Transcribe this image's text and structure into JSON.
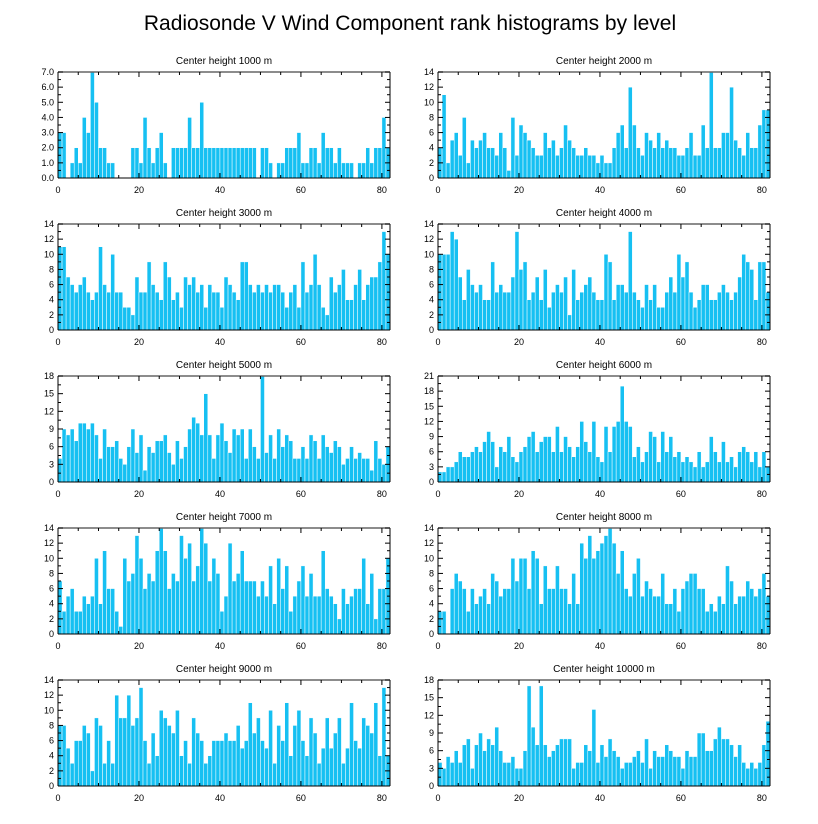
{
  "figure_title": "Radiosonde V Wind Component rank histograms by level",
  "colors": {
    "bar": "#16c0f2",
    "bar_edge": "#ffffff",
    "axis": "#000000",
    "frame_top": "#666666",
    "background": "#ffffff"
  },
  "chart_data": [
    {
      "type": "bar",
      "title": "Center height 1000 m",
      "xlim": [
        0,
        82
      ],
      "ylim": [
        0,
        7
      ],
      "xticks": [
        0,
        20,
        40,
        60,
        80
      ],
      "yticks": [
        0,
        1,
        2,
        3,
        4,
        5,
        6,
        7
      ],
      "ytick_labels": [
        "0.0",
        "1.0",
        "2.0",
        "3.0",
        "4.0",
        "5.0",
        "6.0",
        "7.0"
      ],
      "values": [
        3,
        3,
        0,
        1,
        2,
        1,
        4,
        3,
        7,
        5,
        2,
        2,
        1,
        1,
        0,
        0,
        0,
        0,
        2,
        2,
        1,
        4,
        2,
        1,
        2,
        3,
        1,
        0,
        2,
        2,
        2,
        2,
        4,
        2,
        2,
        5,
        2,
        2,
        2,
        2,
        2,
        2,
        2,
        2,
        2,
        2,
        2,
        2,
        2,
        0,
        2,
        2,
        1,
        0,
        1,
        1,
        2,
        2,
        2,
        3,
        1,
        1,
        2,
        2,
        1,
        3,
        2,
        2,
        1,
        2,
        1,
        1,
        1,
        0,
        1,
        1,
        2,
        1,
        2,
        2,
        4,
        2
      ]
    },
    {
      "type": "bar",
      "title": "Center height 2000 m",
      "xlim": [
        0,
        82
      ],
      "ylim": [
        0,
        14
      ],
      "xticks": [
        0,
        20,
        40,
        60,
        80
      ],
      "yticks": [
        0,
        2,
        4,
        6,
        8,
        10,
        12,
        14
      ],
      "values": [
        4,
        11,
        2,
        5,
        6,
        3,
        8,
        2,
        5,
        4,
        5,
        6,
        4,
        4,
        3,
        6,
        4,
        1,
        8,
        3,
        7,
        6,
        5,
        4,
        3,
        3,
        6,
        4,
        5,
        3,
        4,
        7,
        5,
        4,
        3,
        3,
        4,
        3,
        3,
        2,
        3,
        2,
        2,
        4,
        6,
        7,
        4,
        12,
        7,
        4,
        3,
        6,
        5,
        4,
        6,
        4,
        5,
        4,
        4,
        3,
        3,
        4,
        6,
        3,
        3,
        7,
        4,
        14,
        4,
        4,
        6,
        6,
        12,
        5,
        4,
        3,
        6,
        4,
        4,
        7,
        9,
        9
      ]
    },
    {
      "type": "bar",
      "title": "Center height 3000 m",
      "xlim": [
        0,
        82
      ],
      "ylim": [
        0,
        14
      ],
      "xticks": [
        0,
        20,
        40,
        60,
        80
      ],
      "yticks": [
        0,
        2,
        4,
        6,
        8,
        10,
        12,
        14
      ],
      "values": [
        11,
        11,
        7,
        6,
        5,
        6,
        7,
        5,
        4,
        5,
        11,
        6,
        5,
        10,
        5,
        5,
        3,
        3,
        2,
        7,
        5,
        5,
        9,
        6,
        5,
        4,
        9,
        7,
        4,
        5,
        3,
        7,
        6,
        7,
        5,
        6,
        3,
        6,
        5,
        5,
        3,
        7,
        6,
        5,
        4,
        9,
        9,
        6,
        5,
        6,
        5,
        6,
        5,
        6,
        6,
        5,
        3,
        5,
        6,
        3,
        9,
        5,
        6,
        10,
        6,
        3,
        2,
        7,
        5,
        6,
        8,
        4,
        4,
        6,
        8,
        4,
        6,
        7,
        7,
        9,
        13,
        10
      ]
    },
    {
      "type": "bar",
      "title": "Center height 4000 m",
      "xlim": [
        0,
        82
      ],
      "ylim": [
        0,
        14
      ],
      "xticks": [
        0,
        20,
        40,
        60,
        80
      ],
      "yticks": [
        0,
        2,
        4,
        6,
        8,
        10,
        12,
        14
      ],
      "values": [
        10,
        10,
        10,
        13,
        12,
        7,
        4,
        8,
        6,
        5,
        6,
        4,
        4,
        9,
        5,
        6,
        5,
        5,
        7,
        13,
        8,
        9,
        4,
        5,
        7,
        4,
        8,
        3,
        5,
        6,
        5,
        7,
        2,
        8,
        4,
        5,
        6,
        7,
        5,
        4,
        4,
        10,
        9,
        4,
        6,
        6,
        5,
        13,
        5,
        4,
        3,
        6,
        4,
        6,
        3,
        3,
        5,
        7,
        5,
        10,
        7,
        9,
        5,
        3,
        4,
        6,
        6,
        4,
        4,
        5,
        6,
        5,
        4,
        5,
        7,
        10,
        9,
        8,
        4,
        9,
        9,
        5
      ]
    },
    {
      "type": "bar",
      "title": "Center height 5000 m",
      "xlim": [
        0,
        82
      ],
      "ylim": [
        0,
        18
      ],
      "xticks": [
        0,
        20,
        40,
        60,
        80
      ],
      "yticks": [
        0,
        3,
        6,
        9,
        12,
        15,
        18
      ],
      "values": [
        4,
        9,
        8,
        9,
        7,
        10,
        10,
        9,
        10,
        8,
        4,
        9,
        6,
        6,
        7,
        4,
        3,
        6,
        9,
        5,
        8,
        2,
        6,
        5,
        7,
        7,
        8,
        5,
        3,
        7,
        4,
        6,
        9,
        11,
        10,
        8,
        15,
        8,
        4,
        8,
        10,
        7,
        5,
        9,
        8,
        9,
        4,
        9,
        6,
        4,
        18,
        5,
        8,
        4,
        9,
        6,
        8,
        7,
        4,
        4,
        6,
        4,
        8,
        7,
        4,
        8,
        6,
        5,
        7,
        6,
        3,
        4,
        6,
        4,
        5,
        4,
        4,
        2,
        7,
        4,
        3,
        6
      ]
    },
    {
      "type": "bar",
      "title": "Center height 6000 m",
      "xlim": [
        0,
        82
      ],
      "ylim": [
        0,
        21
      ],
      "xticks": [
        0,
        20,
        40,
        60,
        80
      ],
      "yticks": [
        0,
        3,
        6,
        9,
        12,
        15,
        18,
        21
      ],
      "values": [
        2,
        2,
        3,
        3,
        4,
        6,
        5,
        5,
        6,
        7,
        6,
        8,
        10,
        8,
        3,
        7,
        6,
        9,
        5,
        4,
        6,
        7,
        9,
        10,
        6,
        8,
        9,
        9,
        6,
        11,
        6,
        9,
        7,
        5,
        7,
        12,
        8,
        6,
        12,
        5,
        4,
        11,
        6,
        11,
        12,
        19,
        12,
        11,
        5,
        7,
        4,
        6,
        10,
        9,
        4,
        10,
        6,
        9,
        5,
        6,
        4,
        5,
        4,
        3,
        6,
        3,
        4,
        9,
        6,
        4,
        8,
        4,
        5,
        3,
        6,
        7,
        6,
        4,
        6,
        3,
        6,
        3
      ]
    },
    {
      "type": "bar",
      "title": "Center height 7000 m",
      "xlim": [
        0,
        82
      ],
      "ylim": [
        0,
        14
      ],
      "xticks": [
        0,
        20,
        40,
        60,
        80
      ],
      "yticks": [
        0,
        2,
        4,
        6,
        8,
        10,
        12,
        14
      ],
      "values": [
        7,
        3,
        5,
        6,
        3,
        3,
        5,
        4,
        5,
        10,
        4,
        11,
        6,
        6,
        3,
        1,
        10,
        7,
        8,
        13,
        10,
        6,
        8,
        7,
        11,
        14,
        11,
        6,
        8,
        7,
        13,
        10,
        12,
        7,
        9,
        14,
        12,
        7,
        10,
        8,
        3,
        5,
        12,
        7,
        8,
        11,
        7,
        7,
        7,
        5,
        7,
        5,
        9,
        4,
        10,
        6,
        9,
        3,
        5,
        7,
        9,
        5,
        8,
        5,
        5,
        11,
        6,
        5,
        4,
        2,
        6,
        4,
        5,
        6,
        6,
        10,
        4,
        8,
        2,
        6,
        6,
        10
      ]
    },
    {
      "type": "bar",
      "title": "Center height 8000 m",
      "xlim": [
        0,
        82
      ],
      "ylim": [
        0,
        14
      ],
      "xticks": [
        0,
        20,
        40,
        60,
        80
      ],
      "yticks": [
        0,
        2,
        4,
        6,
        8,
        10,
        12,
        14
      ],
      "values": [
        3,
        3,
        0,
        6,
        8,
        7,
        6,
        3,
        6,
        4,
        5,
        6,
        4,
        8,
        7,
        5,
        6,
        6,
        10,
        7,
        10,
        10,
        6,
        11,
        10,
        4,
        9,
        6,
        6,
        9,
        6,
        6,
        4,
        8,
        4,
        12,
        10,
        13,
        10,
        11,
        12,
        13,
        14,
        12,
        8,
        11,
        6,
        5,
        8,
        10,
        5,
        7,
        6,
        5,
        5,
        8,
        4,
        4,
        6,
        3,
        6,
        7,
        8,
        8,
        6,
        6,
        3,
        4,
        3,
        5,
        4,
        9,
        7,
        4,
        5,
        5,
        7,
        6,
        5,
        6,
        8,
        5
      ]
    },
    {
      "type": "bar",
      "title": "Center height 9000 m",
      "xlim": [
        0,
        82
      ],
      "ylim": [
        0,
        14
      ],
      "xticks": [
        0,
        20,
        40,
        60,
        80
      ],
      "yticks": [
        0,
        2,
        4,
        6,
        8,
        10,
        12,
        14
      ],
      "values": [
        8,
        8,
        5,
        3,
        6,
        6,
        8,
        7,
        2,
        9,
        8,
        3,
        6,
        3,
        12,
        9,
        9,
        12,
        8,
        9,
        13,
        6,
        3,
        7,
        4,
        10,
        9,
        8,
        7,
        10,
        4,
        6,
        3,
        9,
        7,
        6,
        3,
        4,
        6,
        6,
        6,
        7,
        6,
        6,
        8,
        5,
        6,
        11,
        7,
        9,
        6,
        5,
        10,
        3,
        8,
        6,
        11,
        4,
        8,
        10,
        6,
        4,
        9,
        7,
        3,
        5,
        9,
        5,
        7,
        9,
        3,
        5,
        11,
        6,
        5,
        9,
        8,
        7,
        11,
        4,
        13,
        4
      ]
    },
    {
      "type": "bar",
      "title": "Center height 10000 m",
      "xlim": [
        0,
        82
      ],
      "ylim": [
        0,
        18
      ],
      "xticks": [
        0,
        20,
        40,
        60,
        80
      ],
      "yticks": [
        0,
        3,
        6,
        9,
        12,
        15,
        18
      ],
      "values": [
        4,
        3,
        5,
        4,
        6,
        4,
        7,
        8,
        3,
        7,
        9,
        6,
        8,
        7,
        10,
        6,
        4,
        4,
        5,
        3,
        3,
        6,
        17,
        10,
        7,
        17,
        7,
        5,
        6,
        7,
        8,
        8,
        8,
        3,
        4,
        4,
        7,
        6,
        13,
        4,
        7,
        5,
        8,
        6,
        5,
        3,
        4,
        4,
        5,
        6,
        4,
        8,
        3,
        6,
        5,
        5,
        7,
        6,
        5,
        5,
        3,
        6,
        5,
        5,
        9,
        9,
        6,
        6,
        8,
        10,
        8,
        8,
        7,
        5,
        7,
        4,
        3,
        4,
        3,
        4,
        7,
        11
      ]
    }
  ]
}
